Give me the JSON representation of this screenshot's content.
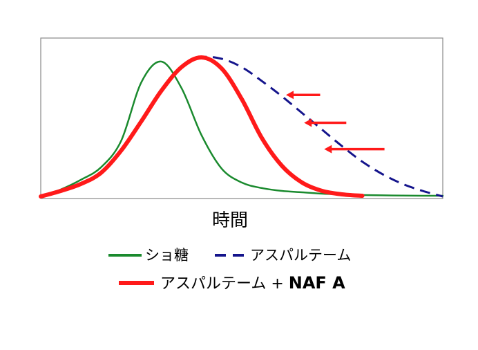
{
  "chart_data": {
    "type": "line",
    "title": "",
    "xlabel": "時間",
    "ylabel": "",
    "grid": false,
    "legend_position": "bottom",
    "x": [
      0,
      0.05,
      0.1,
      0.15,
      0.2,
      0.25,
      0.3,
      0.35,
      0.4,
      0.45,
      0.5,
      0.55,
      0.6,
      0.65,
      0.7,
      0.75,
      0.8,
      0.85,
      0.9,
      0.95,
      1.0
    ],
    "series": [
      {
        "name": "ショ糖",
        "color": "#1a8a2e",
        "style": "solid",
        "values": [
          0.0,
          0.05,
          0.12,
          0.21,
          0.4,
          0.82,
          0.97,
          0.78,
          0.44,
          0.2,
          0.1,
          0.06,
          0.04,
          0.03,
          0.02,
          0.015,
          0.01,
          0.008,
          0.006,
          0.005,
          0.005
        ]
      },
      {
        "name": "アスパルテーム",
        "color": "#14148c",
        "style": "dashed",
        "values": [
          0.0,
          0.04,
          0.09,
          0.17,
          0.33,
          0.54,
          0.76,
          0.93,
          1.0,
          0.99,
          0.93,
          0.83,
          0.72,
          0.6,
          0.48,
          0.36,
          0.25,
          0.16,
          0.09,
          0.04,
          0.0
        ]
      },
      {
        "name": "アスパルテーム + NAF A",
        "color": "#ff1a1a",
        "style": "solid-thick",
        "values": [
          0.0,
          0.04,
          0.09,
          0.17,
          0.33,
          0.54,
          0.76,
          0.93,
          1.0,
          0.92,
          0.7,
          0.42,
          0.22,
          0.1,
          0.04,
          0.015,
          0.005,
          null,
          null,
          null,
          null
        ]
      }
    ],
    "annotations": [
      {
        "type": "arrow",
        "direction": "left",
        "from": [
          0.695,
          0.73
        ],
        "to": [
          0.61,
          0.73
        ],
        "color": "#ff1a1a"
      },
      {
        "type": "arrow",
        "direction": "left",
        "from": [
          0.76,
          0.53
        ],
        "to": [
          0.655,
          0.53
        ],
        "color": "#ff1a1a"
      },
      {
        "type": "arrow",
        "direction": "left",
        "from": [
          0.855,
          0.34
        ],
        "to": [
          0.705,
          0.34
        ],
        "color": "#ff1a1a"
      }
    ],
    "legend": [
      {
        "label": "ショ糖",
        "color": "#1a8a2e",
        "style": "solid"
      },
      {
        "label": "アスパルテーム",
        "color": "#14148c",
        "style": "dashed"
      },
      {
        "label_main": "アスパルテーム + ",
        "label_bold": "NAF A",
        "color": "#ff1a1a",
        "style": "solid-thick"
      }
    ]
  }
}
